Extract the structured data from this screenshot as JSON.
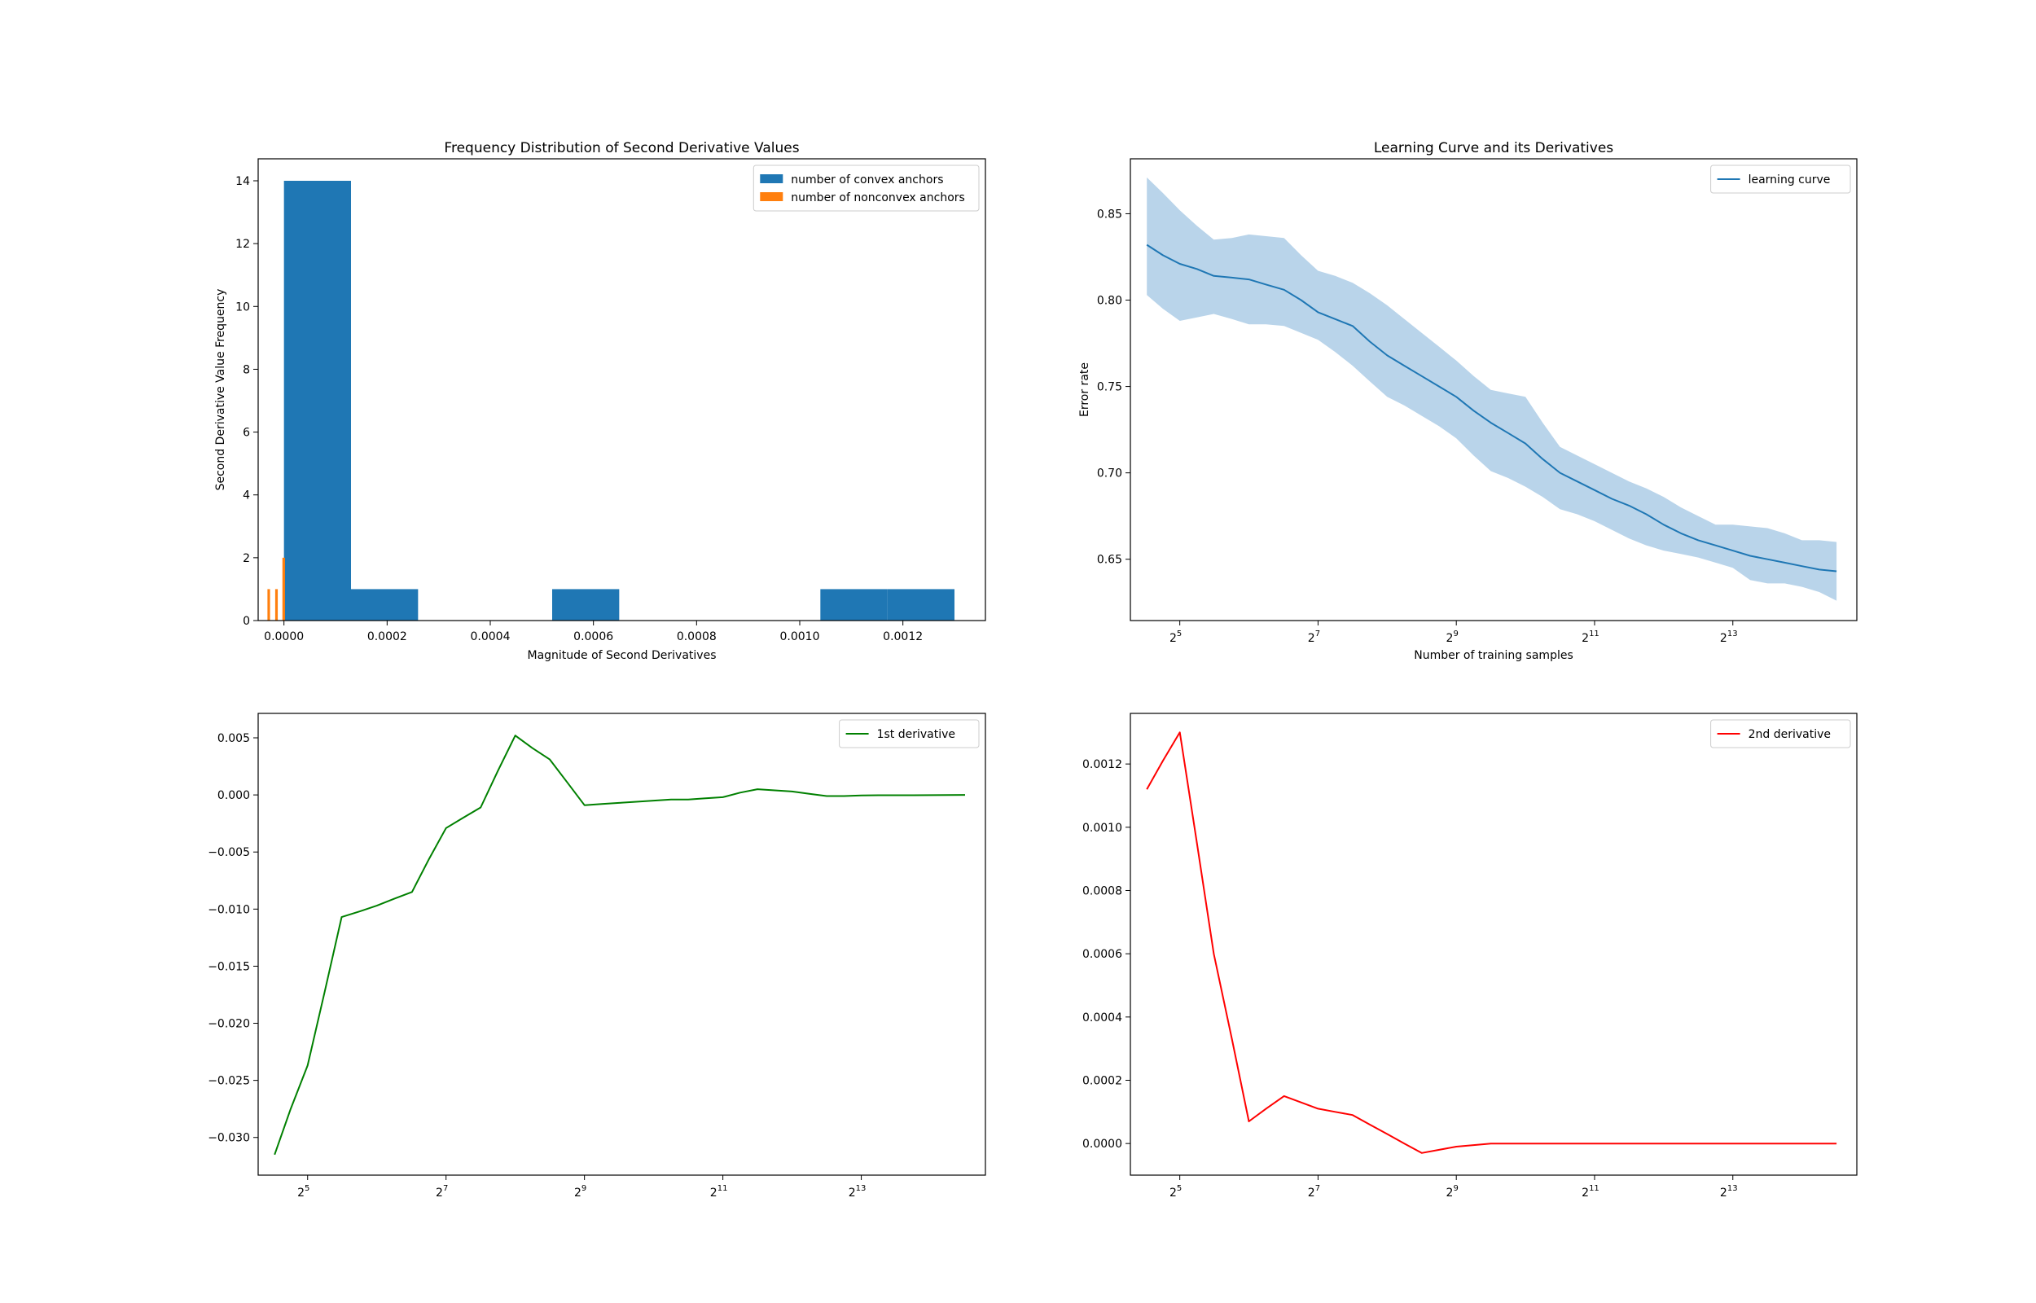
{
  "colors": {
    "convex": "#1f77b4",
    "nonconvex": "#ff7f0e",
    "learning": "#1f77b4",
    "band": "#b9d4ea",
    "first": "#008000",
    "second": "#ff0000"
  },
  "chart_data": [
    {
      "type": "bar",
      "title": "Frequency Distribution of Second Derivative Values",
      "xlabel": "Magnitude of Second Derivatives",
      "ylabel": "Second Derivative Value Frequency",
      "xlim": [
        -5e-05,
        0.00136
      ],
      "ylim": [
        0,
        14.7
      ],
      "xticks": [
        0,
        0.0002,
        0.0004,
        0.0006,
        0.0008,
        0.001,
        0.0012
      ],
      "xtick_labels": [
        "0.0000",
        "0.0002",
        "0.0004",
        "0.0006",
        "0.0008",
        "0.0010",
        "0.0012"
      ],
      "yticks": [
        0,
        2,
        4,
        6,
        8,
        10,
        12,
        14
      ],
      "ytick_labels": [
        "0",
        "2",
        "4",
        "6",
        "8",
        "10",
        "12",
        "14"
      ],
      "legend": "top-right",
      "series": [
        {
          "name": "number of convex anchors",
          "color": "#1f77b4",
          "bins": [
            {
              "x0": 0.0,
              "x1": 0.00013,
              "count": 14
            },
            {
              "x0": 0.00013,
              "x1": 0.00026,
              "count": 1
            },
            {
              "x0": 0.00026,
              "x1": 0.00039,
              "count": 0
            },
            {
              "x0": 0.00039,
              "x1": 0.00052,
              "count": 0
            },
            {
              "x0": 0.00052,
              "x1": 0.00065,
              "count": 1
            },
            {
              "x0": 0.00065,
              "x1": 0.00078,
              "count": 0
            },
            {
              "x0": 0.00078,
              "x1": 0.00091,
              "count": 0
            },
            {
              "x0": 0.00091,
              "x1": 0.00104,
              "count": 0
            },
            {
              "x0": 0.00104,
              "x1": 0.00117,
              "count": 1
            },
            {
              "x0": 0.00117,
              "x1": 0.0013,
              "count": 1
            }
          ]
        },
        {
          "name": "number of nonconvex anchors",
          "color": "#ff7f0e",
          "bins": [
            {
              "x0": -3.2e-05,
              "x1": -2.7e-05,
              "count": 1
            },
            {
              "x0": -1.7e-05,
              "x1": -1.2e-05,
              "count": 1
            },
            {
              "x0": -3e-06,
              "x1": 2e-06,
              "count": 2
            }
          ]
        }
      ]
    },
    {
      "type": "line",
      "title": "Learning Curve and its Derivatives",
      "xlabel": "Number of training samples",
      "ylabel": "Error rate",
      "xscale": "log2",
      "xlim": [
        19.5,
        28400
      ],
      "ylim": [
        0.6145,
        0.8818
      ],
      "xticks": [
        32,
        128,
        512,
        2048,
        8192
      ],
      "xtick_labels": [
        {
          "base": "2",
          "exp": "5"
        },
        {
          "base": "2",
          "exp": "7"
        },
        {
          "base": "2",
          "exp": "9"
        },
        {
          "base": "2",
          "exp": "11"
        },
        {
          "base": "2",
          "exp": "13"
        }
      ],
      "yticks": [
        0.65,
        0.7,
        0.75,
        0.8,
        0.85
      ],
      "ytick_labels": [
        "0.65",
        "0.70",
        "0.75",
        "0.80",
        "0.85"
      ],
      "legend": "top-right",
      "series": [
        {
          "name": "learning curve",
          "color": "#1f77b4",
          "x": [
            23,
            27,
            32,
            38,
            45,
            54,
            64,
            76,
            91,
            108,
            128,
            152,
            181,
            215,
            256,
            304,
            362,
            431,
            512,
            609,
            724,
            861,
            1024,
            1218,
            1448,
            1722,
            2048,
            2435,
            2896,
            3444,
            4096,
            4871,
            5793,
            6889,
            8192,
            9742,
            11585,
            13777,
            16384,
            19484,
            23170
          ],
          "y": [
            0.832,
            0.826,
            0.821,
            0.818,
            0.814,
            0.813,
            0.812,
            0.809,
            0.806,
            0.8,
            0.793,
            0.789,
            0.785,
            0.776,
            0.768,
            0.762,
            0.756,
            0.75,
            0.744,
            0.736,
            0.729,
            0.723,
            0.717,
            0.708,
            0.7,
            0.695,
            0.69,
            0.685,
            0.681,
            0.676,
            0.67,
            0.665,
            0.661,
            0.658,
            0.655,
            0.652,
            0.65,
            0.648,
            0.646,
            0.644,
            0.643
          ],
          "band_upper": [
            0.871,
            0.862,
            0.852,
            0.843,
            0.835,
            0.836,
            0.838,
            0.837,
            0.836,
            0.826,
            0.817,
            0.814,
            0.81,
            0.804,
            0.797,
            0.789,
            0.781,
            0.773,
            0.765,
            0.756,
            0.748,
            0.746,
            0.744,
            0.729,
            0.715,
            0.71,
            0.705,
            0.7,
            0.695,
            0.691,
            0.686,
            0.68,
            0.675,
            0.67,
            0.67,
            0.669,
            0.668,
            0.665,
            0.661,
            0.661,
            0.66
          ],
          "band_lower": [
            0.803,
            0.795,
            0.788,
            0.79,
            0.792,
            0.789,
            0.786,
            0.786,
            0.785,
            0.781,
            0.777,
            0.77,
            0.762,
            0.753,
            0.744,
            0.739,
            0.733,
            0.727,
            0.72,
            0.71,
            0.701,
            0.697,
            0.692,
            0.686,
            0.679,
            0.676,
            0.672,
            0.667,
            0.662,
            0.658,
            0.655,
            0.653,
            0.651,
            0.648,
            0.645,
            0.638,
            0.636,
            0.636,
            0.634,
            0.631,
            0.626
          ]
        }
      ]
    },
    {
      "type": "line",
      "title": "",
      "xlabel": "",
      "ylabel": "",
      "xscale": "log2",
      "xlim": [
        19.5,
        28400
      ],
      "ylim": [
        -0.0333,
        0.00714
      ],
      "xticks": [
        32,
        128,
        512,
        2048,
        8192
      ],
      "xtick_labels": [
        {
          "base": "2",
          "exp": "5"
        },
        {
          "base": "2",
          "exp": "7"
        },
        {
          "base": "2",
          "exp": "9"
        },
        {
          "base": "2",
          "exp": "11"
        },
        {
          "base": "2",
          "exp": "13"
        }
      ],
      "yticks": [
        -0.03,
        -0.025,
        -0.02,
        -0.015,
        -0.01,
        -0.005,
        0.0,
        0.005
      ],
      "ytick_labels": [
        "−0.030",
        "−0.025",
        "−0.020",
        "−0.015",
        "−0.010",
        "−0.005",
        "0.000",
        "0.005"
      ],
      "legend": "top-right",
      "series": [
        {
          "name": "1st derivative",
          "color": "#008000",
          "x": [
            23,
            27,
            32,
            38,
            45,
            54,
            64,
            76,
            91,
            108,
            128,
            152,
            181,
            215,
            256,
            304,
            362,
            431,
            512,
            609,
            724,
            861,
            1024,
            1218,
            1448,
            1722,
            2048,
            2435,
            2896,
            3444,
            4096,
            4871,
            5793,
            6889,
            8192,
            9742,
            11585,
            13777,
            16384,
            19484,
            23170
          ],
          "y": [
            -0.0315,
            -0.0275,
            -0.0237,
            -0.0172,
            -0.0107,
            -0.0102,
            -0.0097,
            -0.0091,
            -0.0085,
            -0.0056,
            -0.0029,
            -0.002,
            -0.0011,
            0.0021,
            0.0052,
            0.0041,
            0.0031,
            0.0011,
            -0.0009,
            -0.0008,
            -0.0007,
            -0.0006,
            -0.0005,
            -0.0004,
            -0.0004,
            -0.0003,
            -0.0002,
            0.0002,
            0.0005,
            0.0004,
            0.0003,
            0.0001,
            -0.0001,
            -0.0001,
            -5e-05,
            -3e-05,
            -3e-05,
            -3e-05,
            -2e-05,
            -1e-05,
            0.0
          ]
        }
      ]
    },
    {
      "type": "line",
      "title": "",
      "xlabel": "",
      "ylabel": "",
      "xscale": "log2",
      "xlim": [
        19.5,
        28400
      ],
      "ylim": [
        -0.0001,
        0.00136
      ],
      "xticks": [
        32,
        128,
        512,
        2048,
        8192
      ],
      "xtick_labels": [
        {
          "base": "2",
          "exp": "5"
        },
        {
          "base": "2",
          "exp": "7"
        },
        {
          "base": "2",
          "exp": "9"
        },
        {
          "base": "2",
          "exp": "11"
        },
        {
          "base": "2",
          "exp": "13"
        }
      ],
      "yticks": [
        0.0,
        0.0002,
        0.0004,
        0.0006,
        0.0008,
        0.001,
        0.0012
      ],
      "ytick_labels": [
        "0.0000",
        "0.0002",
        "0.0004",
        "0.0006",
        "0.0008",
        "0.0010",
        "0.0012"
      ],
      "legend": "top-right",
      "series": [
        {
          "name": "2nd derivative",
          "color": "#ff0000",
          "x": [
            23,
            27,
            32,
            38,
            45,
            54,
            64,
            76,
            91,
            108,
            128,
            152,
            181,
            215,
            256,
            304,
            362,
            431,
            512,
            609,
            724,
            861,
            1024,
            1218,
            1448,
            1722,
            2048,
            2435,
            2896,
            3444,
            4096,
            4871,
            5793,
            6889,
            8192,
            9742,
            11585,
            13777,
            16384,
            19484,
            23170
          ],
          "y": [
            0.00112,
            0.00121,
            0.0013,
            0.00095,
            0.0006,
            0.00033,
            7e-05,
            0.00011,
            0.00015,
            0.00013,
            0.00011,
            0.0001,
            9e-05,
            6e-05,
            3e-05,
            0.0,
            -3e-05,
            -2e-05,
            -1e-05,
            -5e-06,
            0.0,
            0.0,
            0.0,
            0.0,
            0.0,
            0.0,
            0.0,
            0.0,
            0.0,
            0.0,
            0.0,
            0.0,
            0.0,
            0.0,
            0.0,
            0.0,
            0.0,
            0.0,
            0.0,
            0.0,
            0.0
          ]
        }
      ]
    }
  ]
}
